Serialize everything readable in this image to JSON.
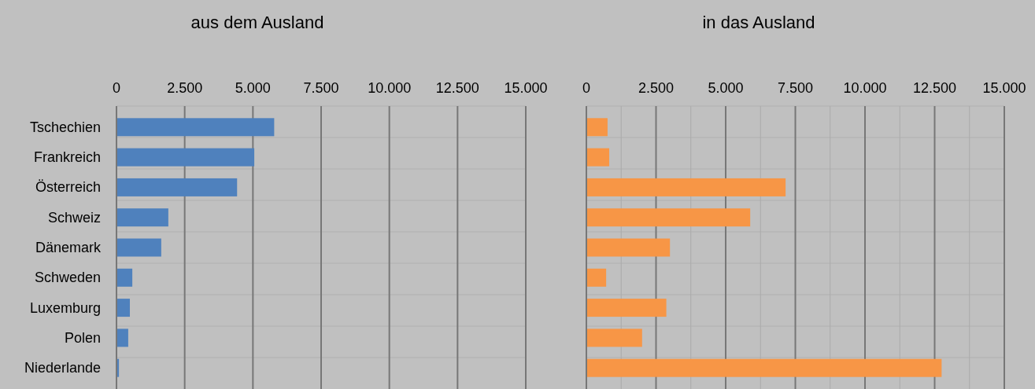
{
  "chart_data": [
    {
      "type": "bar",
      "orientation": "horizontal",
      "title": "aus dem Ausland",
      "categories": [
        "Tschechien",
        "Frankreich",
        "Österreich",
        "Schweiz",
        "Dänemark",
        "Schweden",
        "Luxemburg",
        "Polen",
        "Niederlande"
      ],
      "series": [
        {
          "color": "#4f81bd",
          "values": [
            5780,
            5050,
            4420,
            1900,
            1640,
            580,
            490,
            430,
            90
          ]
        }
      ],
      "xlim": [
        0,
        15000
      ],
      "xticks": [
        {
          "value": 0,
          "label": "0"
        },
        {
          "value": 2500,
          "label": "2.500"
        },
        {
          "value": 5000,
          "label": "5.000"
        },
        {
          "value": 7500,
          "label": "7.500"
        },
        {
          "value": 10000,
          "label": "10.000"
        },
        {
          "value": 12500,
          "label": "12.500"
        },
        {
          "value": 15000,
          "label": "15.000"
        }
      ],
      "grid": true
    },
    {
      "type": "bar",
      "orientation": "horizontal",
      "title": "in das Ausland",
      "categories": [
        null,
        null,
        null,
        null,
        null,
        null,
        null,
        null,
        null
      ],
      "series": [
        {
          "color": "#f79646",
          "values": [
            760,
            820,
            7150,
            5880,
            3000,
            710,
            2870,
            2000,
            12750
          ]
        }
      ],
      "xlim": [
        0,
        15000
      ],
      "xticks": [
        {
          "value": 0,
          "label": "0"
        },
        {
          "value": 1250,
          "label": null
        },
        {
          "value": 2500,
          "label": "2.500"
        },
        {
          "value": 3750,
          "label": null
        },
        {
          "value": 5000,
          "label": "5.000"
        },
        {
          "value": 6250,
          "label": null
        },
        {
          "value": 7500,
          "label": "7.500"
        },
        {
          "value": 8750,
          "label": null
        },
        {
          "value": 10000,
          "label": "10.000"
        },
        {
          "value": 11250,
          "label": null
        },
        {
          "value": 12500,
          "label": "12.500"
        },
        {
          "value": 13750,
          "label": null
        },
        {
          "value": 15000,
          "label": "15.000"
        }
      ],
      "grid": true
    }
  ]
}
